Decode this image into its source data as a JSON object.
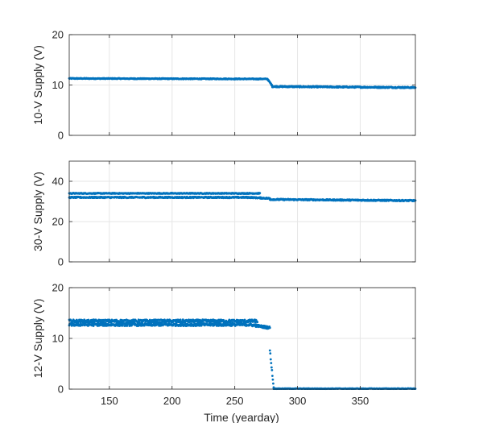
{
  "chart_data": {
    "type": "scatter",
    "marker_color": "#0072BD",
    "x_range": [
      118,
      394
    ],
    "x_ticks": [
      150,
      200,
      250,
      300,
      350
    ],
    "xlabel": "Time (yearday)",
    "grid": true,
    "panels": [
      {
        "ylabel": "10-V Supply (V)",
        "ylim": [
          0,
          20
        ],
        "y_ticks": [
          0,
          10,
          20
        ],
        "series": [
          {
            "x_start": 118,
            "x_end": 276,
            "y_start": 11.3,
            "y_end": 11.2,
            "jitter": 0.08
          },
          {
            "x_start": 276,
            "x_end": 280,
            "y_start": 11.2,
            "y_end": 9.8,
            "jitter": 0.1
          },
          {
            "x_start": 280,
            "x_end": 394,
            "y_start": 9.7,
            "y_end": 9.5,
            "jitter": 0.12
          }
        ]
      },
      {
        "ylabel": "30-V Supply (V)",
        "ylim": [
          0,
          50
        ],
        "y_ticks": [
          0,
          20,
          40
        ],
        "series": [
          {
            "x_start": 118,
            "x_end": 270,
            "y_start": 34.0,
            "y_end": 34.0,
            "jitter": 0.2
          },
          {
            "x_start": 118,
            "x_end": 262,
            "y_start": 32.0,
            "y_end": 32.0,
            "jitter": 0.3
          },
          {
            "x_start": 262,
            "x_end": 278,
            "y_start": 32.0,
            "y_end": 31.5,
            "jitter": 0.3
          },
          {
            "x_start": 278,
            "x_end": 394,
            "y_start": 31.0,
            "y_end": 30.4,
            "jitter": 0.3
          }
        ]
      },
      {
        "ylabel": "12-V Supply (V)",
        "ylim": [
          0,
          20
        ],
        "y_ticks": [
          0,
          10,
          20
        ],
        "series": [
          {
            "x_start": 118,
            "x_end": 268,
            "y_start": 13.4,
            "y_end": 13.4,
            "jitter": 0.3
          },
          {
            "x_start": 118,
            "x_end": 262,
            "y_start": 12.7,
            "y_end": 12.7,
            "jitter": 0.25
          },
          {
            "x_start": 262,
            "x_end": 278,
            "y_start": 12.7,
            "y_end": 12.1,
            "jitter": 0.25
          },
          {
            "x_start": 278,
            "x_end": 281,
            "y_start": 7.7,
            "y_end": 0.3,
            "jitter": 0.2
          },
          {
            "x_start": 281,
            "x_end": 394,
            "y_start": 0.1,
            "y_end": 0.1,
            "jitter": 0.05
          }
        ]
      }
    ]
  }
}
